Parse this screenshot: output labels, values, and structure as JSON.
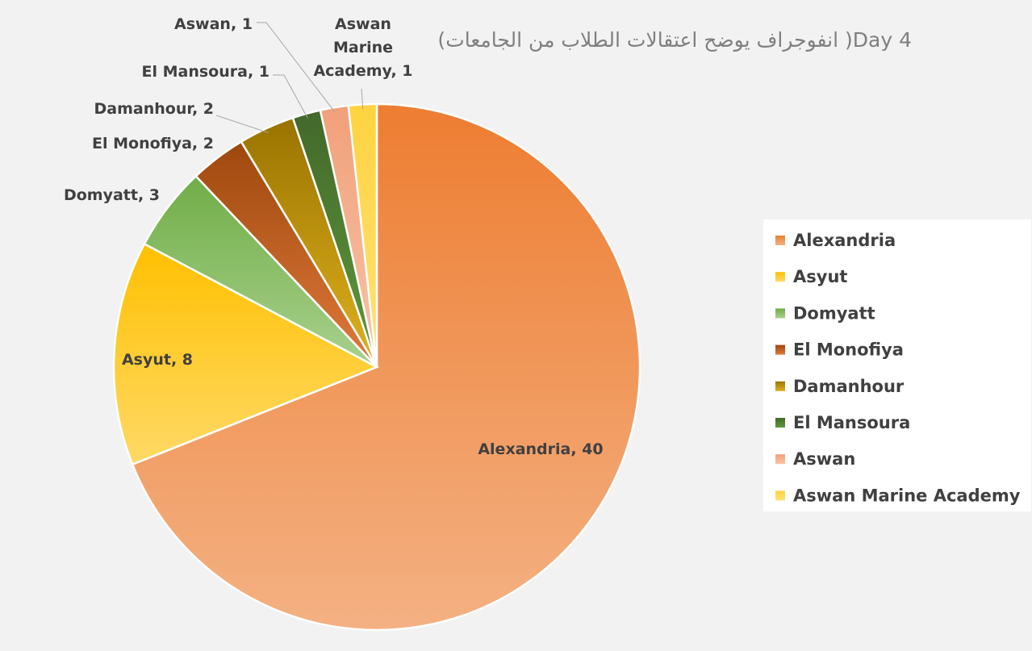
{
  "chart_data": {
    "type": "pie",
    "title": "(انفوجراف يوضح اعتقالات الطلاب من الجامعات )Day 4",
    "categories": [
      "Alexandria",
      "Asyut",
      "Domyatt",
      "El Monofiya",
      "Damanhour",
      "El Mansoura",
      "Aswan",
      "Aswan Marine Academy"
    ],
    "values": [
      40,
      8,
      3,
      2,
      2,
      1,
      1,
      1
    ],
    "data_labels": [
      "Alexandria, 40",
      "Asyut, 8",
      "Domyatt, 3",
      "El Monofiya, 2",
      "Damanhour, 2",
      "El Mansoura, 1",
      "Aswan, 1",
      "Aswan Marine Academy, 1"
    ],
    "colors": [
      [
        "#ed7d31",
        "#f4b183"
      ],
      [
        "#ffc000",
        "#ffd966"
      ],
      [
        "#70ad47",
        "#a9d18e"
      ],
      [
        "#9e480e",
        "#e07a3a"
      ],
      [
        "#997300",
        "#e0b21e"
      ],
      [
        "#43682b",
        "#5e9a3c"
      ],
      [
        "#f1a07a",
        "#f8c4a8"
      ],
      [
        "#ffd340",
        "#ffe277"
      ]
    ],
    "legend_position": "right",
    "grid": false
  }
}
